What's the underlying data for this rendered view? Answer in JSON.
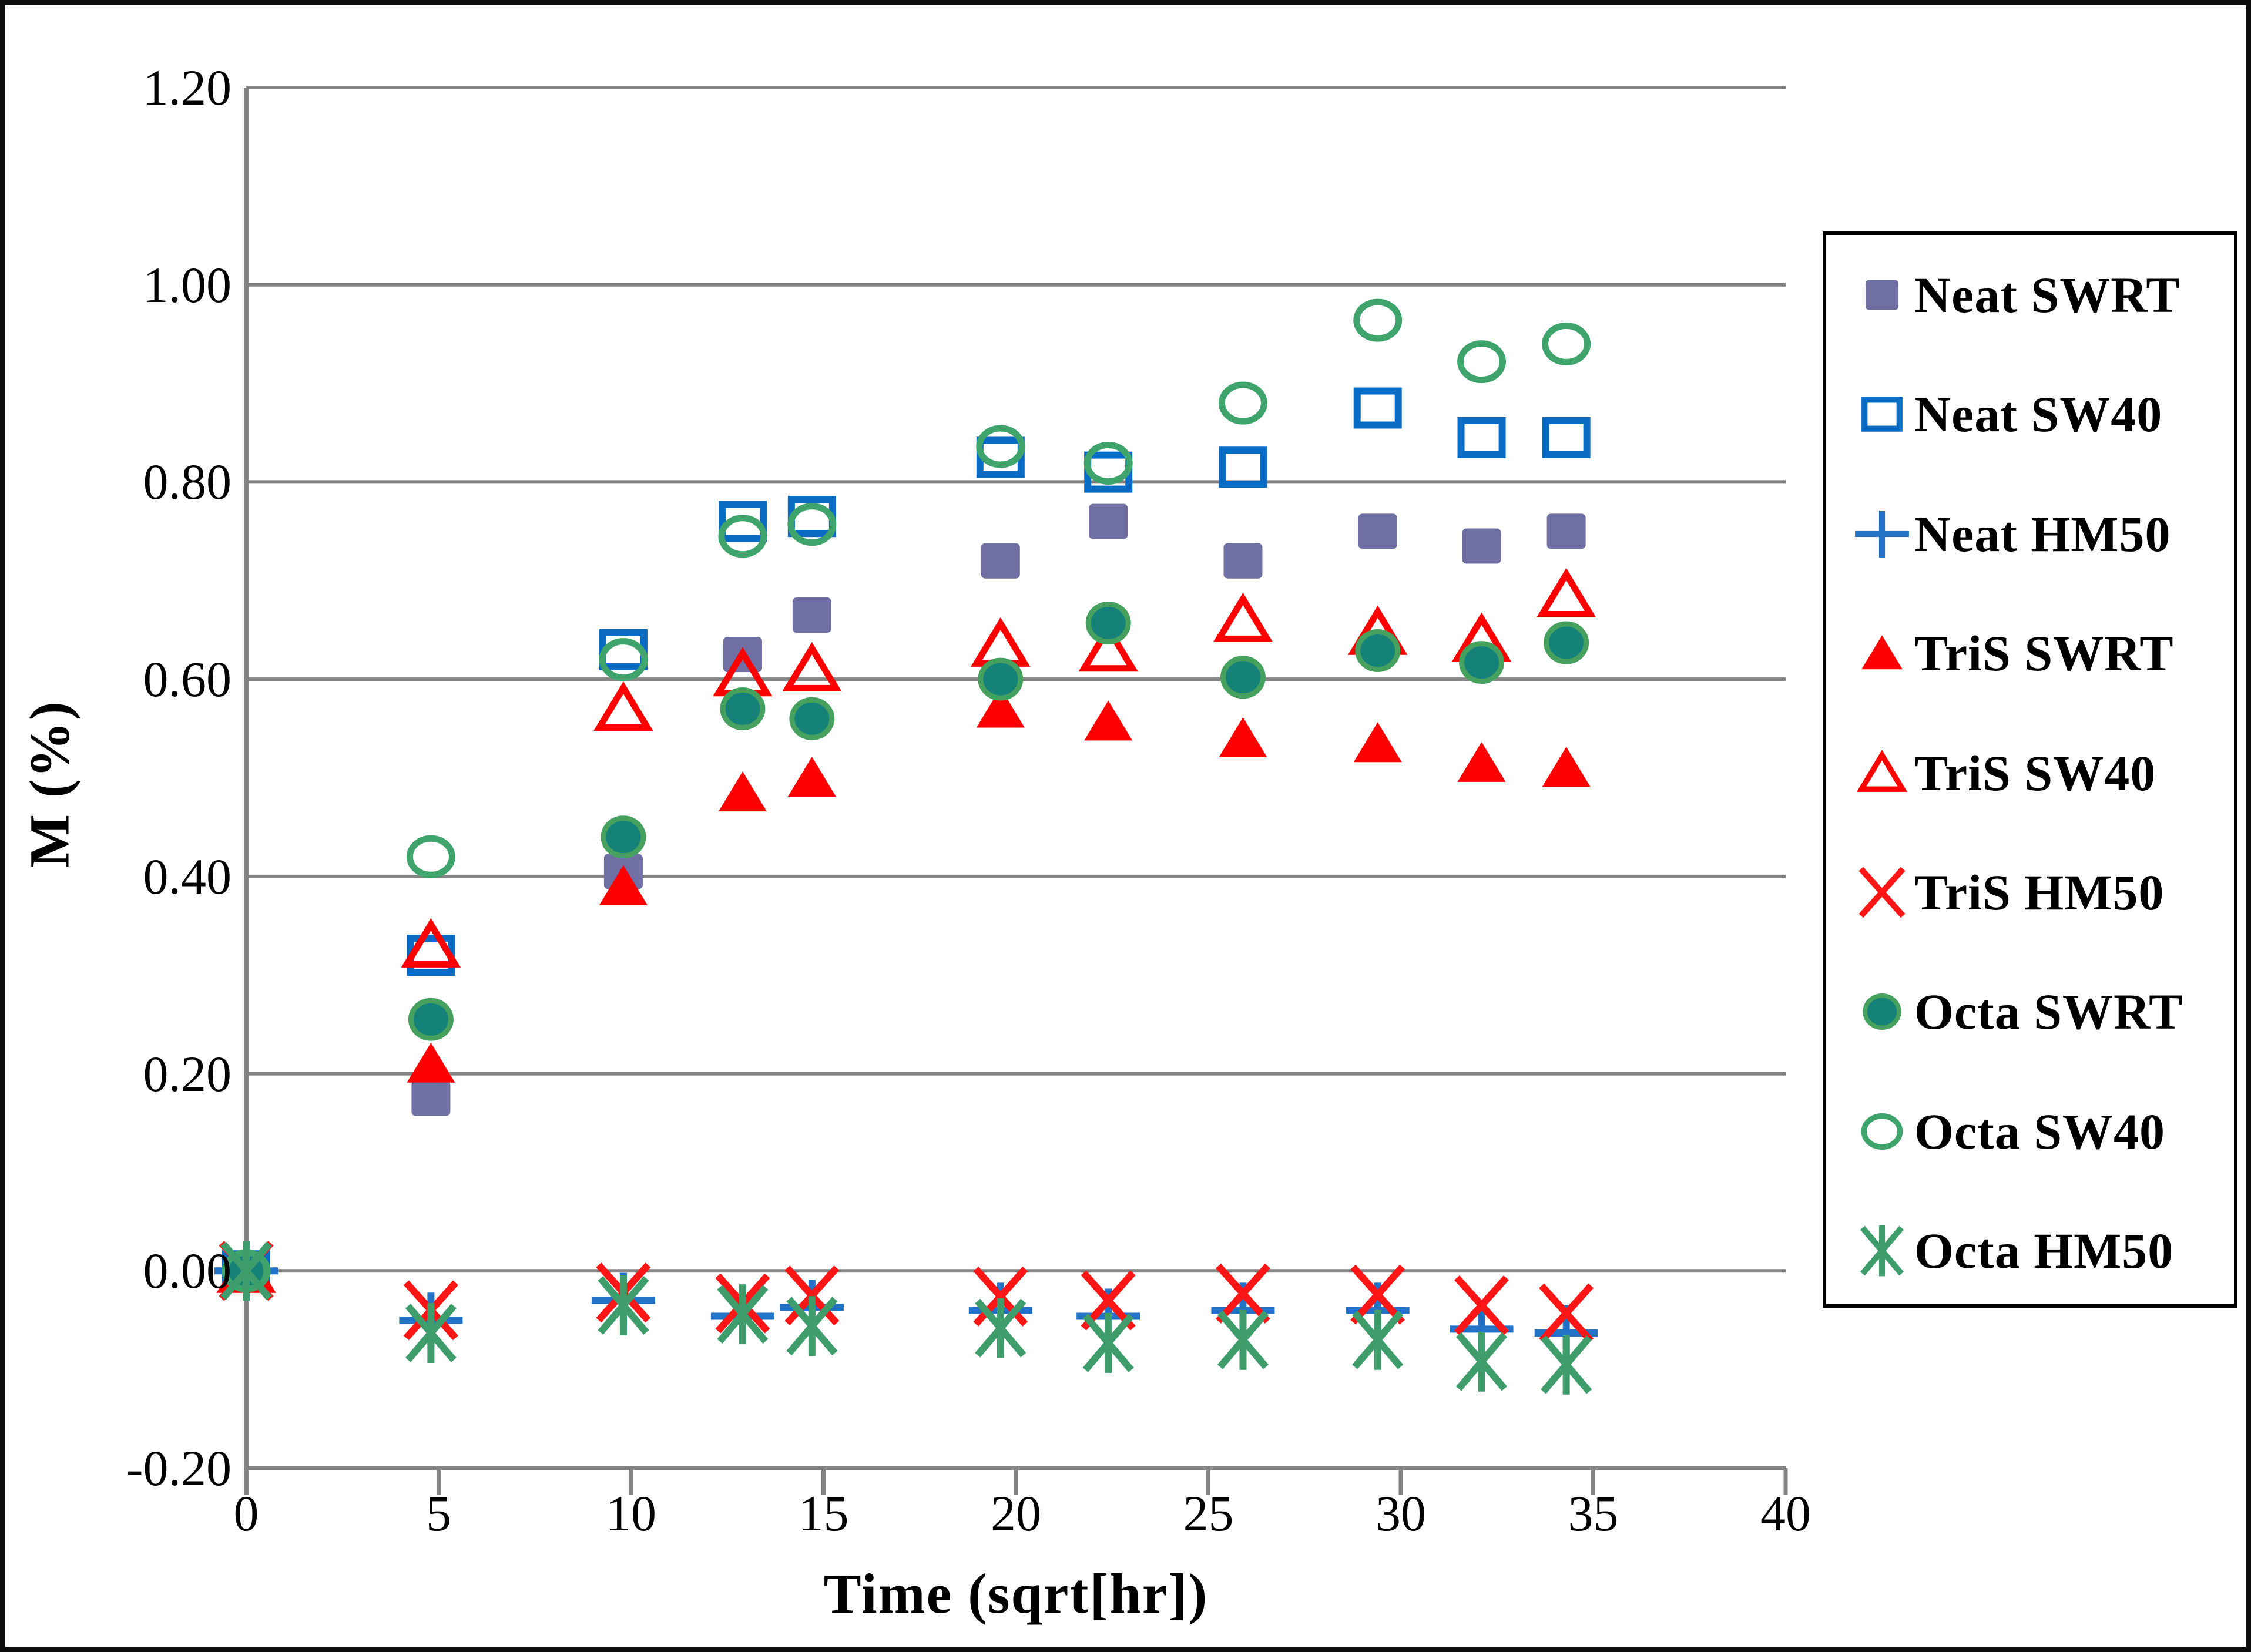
{
  "chart_data": {
    "type": "scatter",
    "title": "",
    "x_label": "Time (sqrt[hr])",
    "y_label": "M (%)",
    "x_ticks": [
      "0",
      "5",
      "10",
      "15",
      "20",
      "25",
      "30",
      "35",
      "40"
    ],
    "y_ticks": [
      "1.20",
      "1.00",
      "0.80",
      "0.60",
      "0.40",
      "0.20",
      "0.00",
      "-0.20"
    ],
    "x_range": [
      0,
      40
    ],
    "y_range": [
      -0.2,
      1.2
    ],
    "grid": "horizontal",
    "legend_position": "right",
    "x": [
      0,
      4.8,
      9.8,
      12.9,
      14.7,
      19.6,
      22.4,
      25.9,
      29.4,
      32.1,
      34.3
    ],
    "series": [
      {
        "label": "Neat SWRT",
        "marker": "square-filled",
        "color": "#6F6FA3",
        "stroke": "#6F6FA3",
        "values": [
          0.0,
          0.175,
          0.405,
          0.625,
          0.665,
          0.72,
          0.76,
          0.72,
          0.75,
          0.735,
          0.75
        ]
      },
      {
        "label": "Neat SW40",
        "marker": "square-open",
        "color": "#0A6BC5",
        "stroke": "#0A6BC5",
        "values": [
          0.0,
          0.32,
          0.63,
          0.76,
          0.765,
          0.825,
          0.81,
          0.815,
          0.875,
          0.845,
          0.845
        ]
      },
      {
        "label": "Neat HM50",
        "marker": "plus",
        "color": "#2273C8",
        "stroke": "#2273C8",
        "values": [
          0.0,
          -0.05,
          -0.03,
          -0.046,
          -0.037,
          -0.04,
          -0.046,
          -0.04,
          -0.04,
          -0.059,
          -0.063
        ]
      },
      {
        "label": "TriS SWRT",
        "marker": "triangle-filled",
        "color": "#FE0000",
        "stroke": "#FE0000",
        "values": [
          0.0,
          0.21,
          0.39,
          0.485,
          0.5,
          0.57,
          0.557,
          0.54,
          0.535,
          0.515,
          0.51
        ]
      },
      {
        "label": "TriS SW40",
        "marker": "triangle-open",
        "color": "#FE0000",
        "stroke": "#FE0000",
        "values": [
          0.0,
          0.33,
          0.57,
          0.605,
          0.61,
          0.635,
          0.63,
          0.66,
          0.647,
          0.64,
          0.685
        ]
      },
      {
        "label": "TriS HM50",
        "marker": "x",
        "color": "#FE1515",
        "stroke": "#FE1515",
        "values": [
          0.0,
          -0.04,
          -0.022,
          -0.033,
          -0.025,
          -0.026,
          -0.03,
          -0.023,
          -0.024,
          -0.035,
          -0.043
        ]
      },
      {
        "label": "Octa SWRT",
        "marker": "circle-filled",
        "color": "#15827A",
        "stroke": "#46A05E",
        "values": [
          0.0,
          0.255,
          0.44,
          0.57,
          0.56,
          0.6,
          0.657,
          0.602,
          0.629,
          0.617,
          0.637
        ]
      },
      {
        "label": "Octa SW40",
        "marker": "circle-open",
        "color": "#3EA46B",
        "stroke": "#3EA46B",
        "values": [
          0.0,
          0.42,
          0.62,
          0.745,
          0.757,
          0.836,
          0.819,
          0.88,
          0.964,
          0.922,
          0.94
        ]
      },
      {
        "label": "Octa HM50",
        "marker": "asterisk",
        "color": "#3F9C6B",
        "stroke": "#3F9C6B",
        "values": [
          0.0,
          -0.063,
          -0.035,
          -0.044,
          -0.056,
          -0.058,
          -0.073,
          -0.07,
          -0.07,
          -0.092,
          -0.095
        ]
      }
    ]
  },
  "style": {
    "grid_color": "#848484",
    "axis_color": "#848484",
    "text_color": "#000000",
    "legend_border_color": "#000000",
    "figure_border_color": "#0d0d0d"
  }
}
